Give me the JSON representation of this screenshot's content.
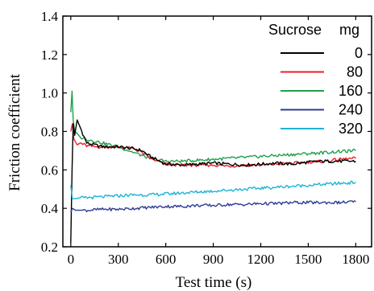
{
  "chart_data": {
    "type": "line",
    "xlabel": "Test time (s)",
    "ylabel": "Friction coefficient",
    "xlim": [
      -50,
      1900
    ],
    "ylim": [
      0.2,
      1.4
    ],
    "xticks": [
      0,
      300,
      600,
      900,
      1200,
      1500,
      1800
    ],
    "yticks": [
      0.2,
      0.4,
      0.6,
      0.8,
      1.0,
      1.2,
      1.4
    ],
    "xtick_labels": [
      "0",
      "300",
      "600",
      "900",
      "1200",
      "1500",
      "1800"
    ],
    "ytick_labels": [
      "0.2",
      "0.4",
      "0.6",
      "0.8",
      "1.0",
      "1.2",
      "1.4"
    ],
    "grid": false,
    "legend_position": "top-right",
    "legend_title_left": "Sucrose",
    "legend_title_right": "mg",
    "series": [
      {
        "name": "0",
        "color": "#000000",
        "x": [
          0,
          8,
          15,
          25,
          40,
          60,
          100,
          150,
          200,
          300,
          400,
          450,
          500,
          550,
          600,
          700,
          800,
          900,
          1000,
          1100,
          1200,
          1300,
          1400,
          1500,
          1600,
          1700,
          1800
        ],
        "y": [
          0.22,
          0.6,
          0.84,
          0.78,
          0.86,
          0.82,
          0.74,
          0.73,
          0.72,
          0.72,
          0.71,
          0.7,
          0.67,
          0.65,
          0.63,
          0.625,
          0.63,
          0.635,
          0.63,
          0.625,
          0.63,
          0.635,
          0.63,
          0.64,
          0.645,
          0.645,
          0.645
        ]
      },
      {
        "name": "80",
        "color": "#e8202a",
        "x": [
          0,
          10,
          20,
          40,
          60,
          100,
          150,
          200,
          300,
          400,
          450,
          500,
          550,
          600,
          700,
          800,
          900,
          1000,
          1100,
          1200,
          1300,
          1400,
          1500,
          1600,
          1700,
          1800
        ],
        "y": [
          0.8,
          0.84,
          0.76,
          0.73,
          0.74,
          0.725,
          0.72,
          0.72,
          0.72,
          0.71,
          0.69,
          0.66,
          0.645,
          0.63,
          0.625,
          0.625,
          0.625,
          0.62,
          0.625,
          0.625,
          0.63,
          0.635,
          0.64,
          0.645,
          0.655,
          0.66
        ]
      },
      {
        "name": "160",
        "color": "#1fa04a",
        "x": [
          0,
          8,
          15,
          25,
          40,
          60,
          100,
          150,
          200,
          300,
          400,
          500,
          600,
          700,
          800,
          900,
          1000,
          1100,
          1200,
          1300,
          1400,
          1500,
          1600,
          1700,
          1800
        ],
        "y": [
          0.9,
          1.01,
          0.86,
          0.8,
          0.79,
          0.77,
          0.76,
          0.75,
          0.74,
          0.72,
          0.69,
          0.66,
          0.645,
          0.645,
          0.65,
          0.655,
          0.66,
          0.665,
          0.67,
          0.675,
          0.68,
          0.685,
          0.69,
          0.695,
          0.7
        ]
      },
      {
        "name": "240",
        "color": "#2e3d96",
        "x": [
          0,
          10,
          30,
          60,
          100,
          200,
          300,
          400,
          500,
          600,
          700,
          800,
          900,
          1000,
          1100,
          1200,
          1300,
          1400,
          1500,
          1600,
          1700,
          1800
        ],
        "y": [
          0.38,
          0.4,
          0.39,
          0.39,
          0.39,
          0.395,
          0.395,
          0.4,
          0.405,
          0.41,
          0.41,
          0.415,
          0.415,
          0.42,
          0.42,
          0.425,
          0.425,
          0.43,
          0.43,
          0.43,
          0.43,
          0.435
        ]
      },
      {
        "name": "320",
        "color": "#1cb4d6",
        "x": [
          0,
          10,
          30,
          60,
          100,
          200,
          300,
          400,
          500,
          600,
          700,
          800,
          900,
          1000,
          1100,
          1200,
          1300,
          1400,
          1500,
          1600,
          1700,
          1800
        ],
        "y": [
          0.52,
          0.45,
          0.45,
          0.455,
          0.455,
          0.46,
          0.465,
          0.47,
          0.47,
          0.475,
          0.48,
          0.485,
          0.49,
          0.495,
          0.5,
          0.505,
          0.51,
          0.515,
          0.52,
          0.525,
          0.53,
          0.535
        ]
      }
    ]
  }
}
